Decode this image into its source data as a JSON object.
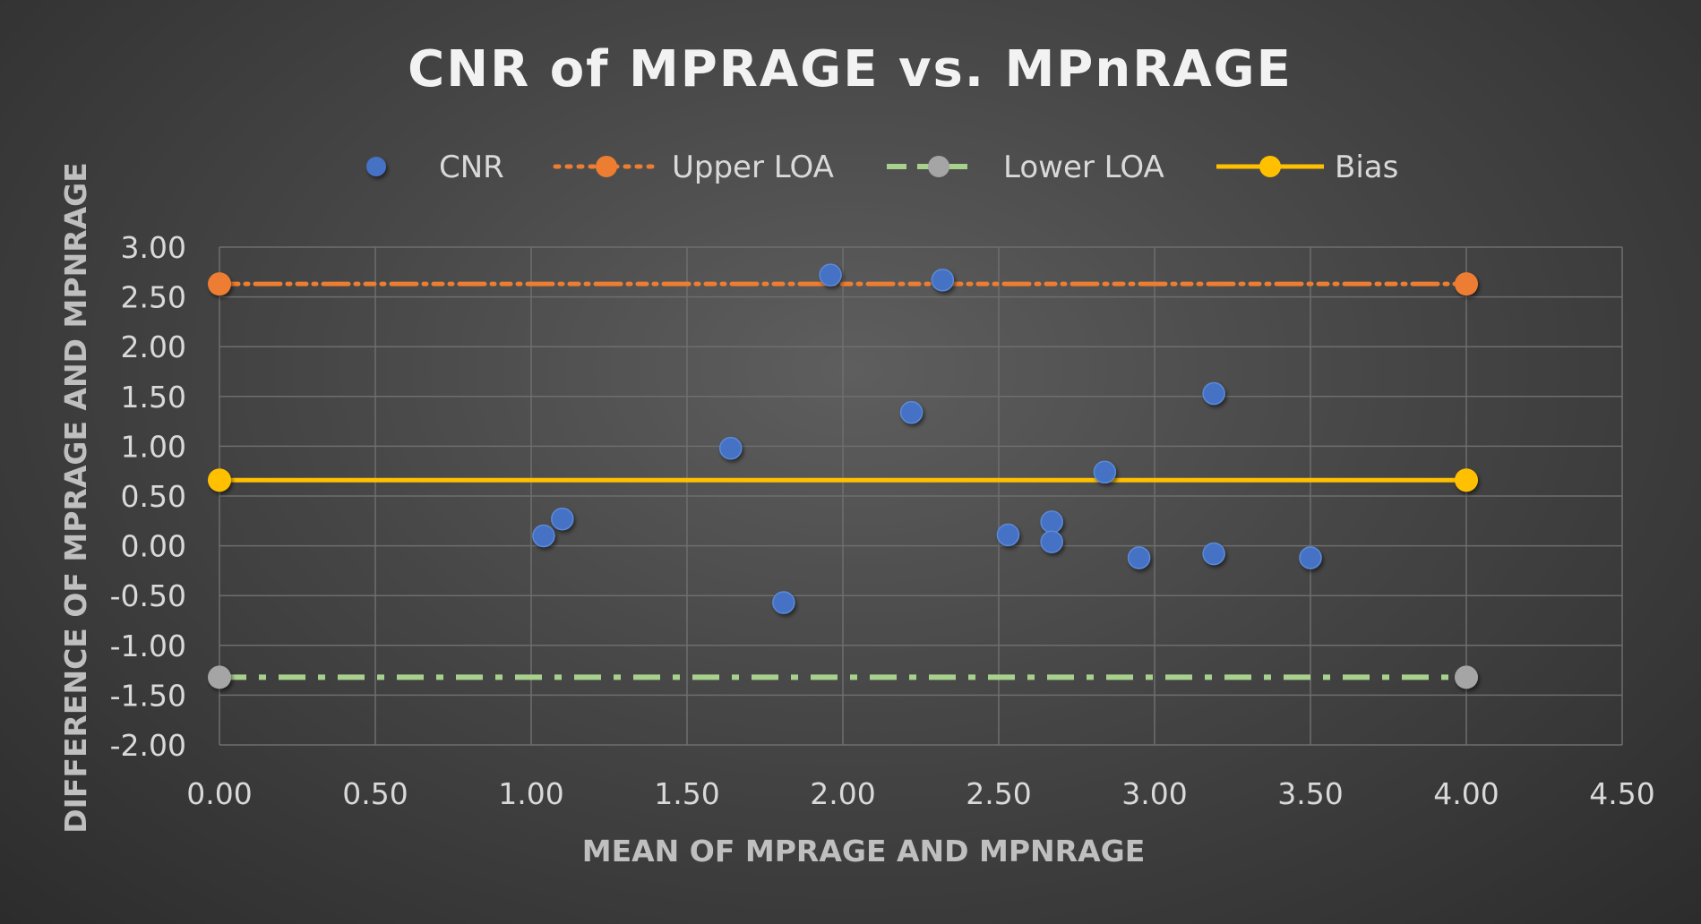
{
  "chart_data": {
    "type": "scatter",
    "title": "CNR of MPRAGE vs. MPnRAGE",
    "xlabel": "MEAN OF MPRAGE AND MPNRAGE",
    "ylabel": "DIFFERENCE OF MPRAGE AND MPNRAGE",
    "xlim": [
      0,
      4.5
    ],
    "ylim": [
      -2,
      3
    ],
    "x_ticks": [
      "0.00",
      "0.50",
      "1.00",
      "1.50",
      "2.00",
      "2.50",
      "3.00",
      "3.50",
      "4.00",
      "4.50"
    ],
    "y_ticks": [
      "3.00",
      "2.50",
      "2.00",
      "1.50",
      "1.00",
      "0.50",
      "0.00",
      "-0.50",
      "-1.00",
      "-1.50",
      "-2.00"
    ],
    "grid": true,
    "legend_position": "top",
    "series": [
      {
        "name": "CNR",
        "kind": "scatter",
        "color": "#4472c4",
        "points": [
          [
            1.04,
            0.1
          ],
          [
            1.1,
            0.27
          ],
          [
            1.64,
            0.98
          ],
          [
            1.81,
            -0.57
          ],
          [
            1.96,
            2.72
          ],
          [
            2.22,
            1.34
          ],
          [
            2.32,
            2.67
          ],
          [
            2.53,
            0.11
          ],
          [
            2.67,
            0.24
          ],
          [
            2.67,
            0.04
          ],
          [
            2.84,
            0.74
          ],
          [
            2.95,
            -0.12
          ],
          [
            3.19,
            1.53
          ],
          [
            3.19,
            -0.08
          ],
          [
            3.5,
            -0.12
          ]
        ]
      },
      {
        "name": "Upper LOA",
        "kind": "line",
        "dash": "dot",
        "color": "#ed7d31",
        "points": [
          [
            0,
            2.63
          ],
          [
            4,
            2.63
          ]
        ]
      },
      {
        "name": "Lower LOA",
        "kind": "line",
        "dash": "dash",
        "color": "#a9d18e",
        "marker_color": "#a5a5a5",
        "points": [
          [
            0,
            -1.32
          ],
          [
            4,
            -1.32
          ]
        ]
      },
      {
        "name": "Bias",
        "kind": "line",
        "dash": "solid",
        "color": "#ffc000",
        "points": [
          [
            0,
            0.66
          ],
          [
            4,
            0.66
          ]
        ]
      }
    ]
  }
}
